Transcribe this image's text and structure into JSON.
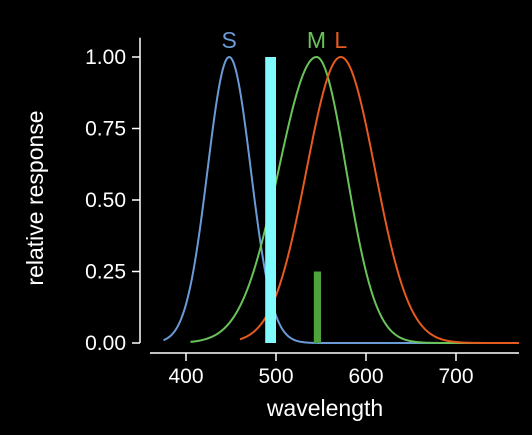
{
  "chart_data": {
    "type": "line",
    "xlabel": "wavelength",
    "ylabel": "relative response",
    "xlim": [
      360,
      770
    ],
    "ylim": [
      0,
      1.05
    ],
    "x_ticks": [
      400,
      500,
      600,
      700
    ],
    "x_tick_labels": [
      "400",
      "500",
      "600",
      "700"
    ],
    "y_ticks": [
      0,
      0.25,
      0.5,
      0.75,
      1.0
    ],
    "y_tick_labels": [
      "0.00",
      "0.25",
      "0.50",
      "0.75",
      "1.00"
    ],
    "background": "#000000",
    "axis_color": "#ffffff",
    "series": [
      {
        "name": "S",
        "label": "S",
        "color": "#6b9bd6",
        "peak": 448,
        "sigma_left": 24,
        "sigma_right": 24,
        "x_start": 375
      },
      {
        "name": "M",
        "label": "M",
        "color": "#6ac35a",
        "peak": 545,
        "sigma_left": 42,
        "sigma_right": 33,
        "x_start": 405
      },
      {
        "name": "L",
        "label": "L",
        "color": "#e55a1f",
        "peak": 572,
        "sigma_left": 38,
        "sigma_right": 38,
        "x_start": 460
      }
    ],
    "bars": [
      {
        "name": "cyan-band",
        "color": "#7ffaff",
        "x_from": 488,
        "x_to": 500,
        "y": 1.0
      },
      {
        "name": "green-band",
        "color": "#4ea33c",
        "x_from": 542,
        "x_to": 550,
        "y": 0.25
      }
    ]
  }
}
